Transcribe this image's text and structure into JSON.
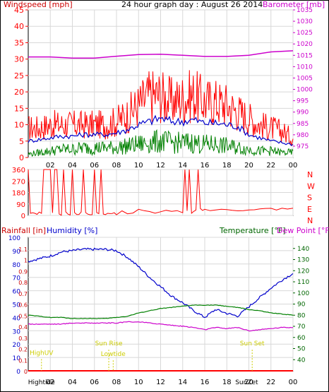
{
  "chart_data": [
    {
      "type": "line",
      "title": "24 hour graph day : August 26 2014",
      "left_axis_label": "Windspeed [mph]",
      "right_axis_label": "Barometer [mb]",
      "x_tick_labels": [
        "02",
        "04",
        "06",
        "08",
        "10",
        "12",
        "14",
        "16",
        "18",
        "20",
        "22",
        "00"
      ],
      "x_range_hours": [
        0,
        24
      ],
      "y_left": {
        "range": [
          0,
          45
        ],
        "ticks": [
          0,
          5,
          10,
          15,
          20,
          25,
          30,
          35,
          40,
          45
        ]
      },
      "y_right": {
        "range": [
          970,
          1035
        ],
        "ticks": [
          975,
          980,
          985,
          990,
          995,
          1000,
          1005,
          1010,
          1015,
          1020,
          1025,
          1030,
          1035
        ]
      },
      "grid": true,
      "colors": {
        "gust": "#ff0000",
        "average": "#0000cc",
        "speed": "#008000",
        "barometer": "#cc00cc",
        "axis_left": "#ff0000",
        "axis_right": "#cc00cc"
      },
      "series": [
        {
          "key": "gust",
          "x": [
            0,
            1,
            2,
            3,
            4,
            5,
            6,
            7,
            8,
            9,
            10,
            11,
            12,
            13,
            14,
            15,
            16,
            17,
            18,
            19,
            20,
            21,
            22,
            23,
            24
          ],
          "values": [
            9,
            9,
            10,
            10,
            10,
            10,
            10,
            10,
            11,
            13,
            16,
            19,
            19,
            17,
            18,
            19,
            17,
            17,
            16,
            14,
            12,
            10,
            9,
            8,
            6
          ]
        },
        {
          "key": "average",
          "x": [
            0,
            1,
            2,
            3,
            4,
            5,
            6,
            7,
            8,
            9,
            10,
            11,
            12,
            13,
            14,
            15,
            16,
            17,
            18,
            19,
            20,
            21,
            22,
            23,
            24
          ],
          "values": [
            5,
            5.5,
            6,
            6.5,
            6.5,
            7,
            7,
            7,
            7.5,
            8.5,
            10,
            11,
            12,
            11,
            11,
            11.5,
            10.5,
            10.5,
            10,
            9.5,
            7,
            6,
            5,
            4.5,
            4
          ]
        },
        {
          "key": "speed",
          "x": [
            0,
            1,
            2,
            3,
            4,
            5,
            6,
            7,
            8,
            9,
            10,
            11,
            12,
            13,
            14,
            15,
            16,
            17,
            18,
            19,
            20,
            21,
            22,
            23,
            24
          ],
          "values": [
            1,
            1.5,
            2,
            2.5,
            2.5,
            3,
            3,
            3,
            3,
            3.5,
            4,
            4.5,
            5,
            4.5,
            4.5,
            4.5,
            4,
            4,
            3.5,
            3,
            2.5,
            2,
            2,
            1.5,
            1.5
          ]
        },
        {
          "key": "barometer",
          "axis": "right",
          "x": [
            0,
            2,
            4,
            6,
            8,
            10,
            12,
            14,
            16,
            18,
            20,
            22,
            24
          ],
          "values": [
            1014.3,
            1014.3,
            1013.8,
            1013.8,
            1014.6,
            1015.3,
            1015.5,
            1015.0,
            1014.5,
            1014.5,
            1015.0,
            1016.5,
            1017.0
          ]
        }
      ]
    },
    {
      "type": "line",
      "title": "",
      "right_axis_labels": [
        "N",
        "W",
        "S",
        "E",
        "N"
      ],
      "x_range_hours": [
        0,
        24
      ],
      "y_left": {
        "range": [
          0,
          360
        ],
        "ticks": [
          0,
          90,
          180,
          270,
          360
        ]
      },
      "grid": true,
      "colors": {
        "direction": "#ff0000",
        "axis": "#ff0000"
      },
      "series": [
        {
          "key": "wind_direction",
          "x": [
            0,
            0.2,
            0.4,
            0.6,
            0.8,
            1.0,
            1.2,
            1.4,
            1.6,
            1.8,
            2.0,
            2.2,
            2.4,
            2.6,
            2.8,
            3.0,
            3.2,
            3.4,
            3.6,
            3.8,
            4.0,
            4.2,
            4.4,
            4.6,
            4.8,
            5.0,
            5.2,
            5.4,
            5.6,
            5.8,
            6.0,
            6.2,
            6.4,
            6.6,
            6.8,
            7.0,
            7.2,
            7.4,
            7.6,
            7.8,
            8.0,
            8.5,
            9,
            9.5,
            10,
            10.5,
            11,
            11.5,
            12,
            12.5,
            13,
            13.5,
            14,
            14.2,
            14.4,
            14.6,
            14.8,
            15.0,
            15.2,
            15.4,
            15.6,
            15.8,
            16,
            16.5,
            17,
            17.5,
            18,
            18.5,
            19,
            19.5,
            20,
            20.5,
            21,
            21.5,
            22,
            22.5,
            23,
            23.5,
            24
          ],
          "values": [
            360,
            10,
            15,
            8,
            12,
            18,
            10,
            360,
            360,
            360,
            360,
            20,
            360,
            360,
            15,
            10,
            360,
            20,
            14,
            12,
            360,
            15,
            10,
            12,
            20,
            360,
            14,
            18,
            12,
            10,
            360,
            14,
            16,
            360,
            20,
            12,
            10,
            15,
            18,
            12,
            14,
            30,
            20,
            25,
            40,
            30,
            35,
            25,
            30,
            35,
            25,
            40,
            30,
            360,
            35,
            360,
            25,
            30,
            40,
            360,
            45,
            35,
            50,
            40,
            35,
            50,
            40,
            38,
            45,
            35,
            50,
            40,
            55,
            45,
            50,
            48,
            55,
            45,
            50
          ]
        }
      ]
    },
    {
      "type": "line",
      "title": "",
      "left_axis_labels": [
        "Rainfall [in]",
        "Humidity [%]"
      ],
      "right_axis_labels": [
        "Temperature [°F]",
        "Dew Point [°F]"
      ],
      "x_tick_labels": [
        "02",
        "04",
        "06",
        "08",
        "10",
        "12",
        "14",
        "16",
        "18",
        "20",
        "22",
        "00"
      ],
      "x_range_hours": [
        0,
        24
      ],
      "y_humidity": {
        "range": [
          0,
          100
        ],
        "ticks": [
          0,
          10,
          20,
          30,
          40,
          50,
          60,
          70,
          80,
          90,
          100
        ]
      },
      "y_rainfall": {
        "range": [
          0,
          1.2
        ],
        "ticks": [
          "0",
          "0.1",
          "0.2",
          "0.3",
          "0.4",
          "0.5",
          "0.6",
          "0.7",
          "0.8",
          "0.9",
          "1",
          "1.1"
        ]
      },
      "y_temperature": {
        "range": [
          30,
          150
        ],
        "ticks": [
          40,
          50,
          60,
          70,
          80,
          90,
          100,
          110,
          120,
          130,
          140
        ]
      },
      "grid": true,
      "colors": {
        "humidity": "#0000cc",
        "temperature": "#008000",
        "dew_point": "#cc00cc",
        "rainfall": "#ff0000",
        "annotations": "#cccc00"
      },
      "annotations": [
        {
          "text": "HighUV",
          "x": 1.2,
          "y_frac": 0.88
        },
        {
          "text": "Sun Rise",
          "x": 7.3,
          "y_frac": 0.81
        },
        {
          "text": "Lowtide",
          "x": 7.7,
          "y_frac": 0.89
        },
        {
          "text": "Sun Set",
          "x": 20.3,
          "y_frac": 0.81
        }
      ],
      "bottom_labels": [
        {
          "text": "Hightide",
          "x": 1.2
        },
        {
          "text": "SunZet",
          "x": 19.8
        }
      ],
      "series": [
        {
          "key": "humidity",
          "axis": "humidity",
          "x": [
            0,
            1,
            2,
            3,
            4,
            5,
            6,
            7,
            8,
            9,
            10,
            11,
            12,
            13,
            14,
            15,
            16,
            17,
            18,
            19,
            20,
            21,
            22,
            23,
            24
          ],
          "values": [
            82,
            84,
            86,
            89,
            90,
            91,
            91,
            91,
            90,
            85,
            78,
            70,
            63,
            56,
            51,
            45,
            40,
            46,
            43,
            41,
            48,
            55,
            62,
            68,
            73
          ]
        },
        {
          "key": "temperature",
          "axis": "temperature",
          "x": [
            0,
            1,
            2,
            3,
            4,
            5,
            6,
            7,
            8,
            9,
            10,
            11,
            12,
            13,
            14,
            15,
            16,
            17,
            18,
            19,
            20,
            21,
            22,
            23,
            24
          ],
          "values": [
            80,
            79,
            78,
            78,
            77,
            77,
            77,
            77,
            78,
            79,
            82,
            84,
            86,
            87,
            88,
            89,
            89,
            89,
            88,
            87,
            85,
            84,
            82,
            81,
            80
          ]
        },
        {
          "key": "dew_point",
          "axis": "temperature",
          "x": [
            0,
            1,
            2,
            3,
            4,
            5,
            6,
            7,
            8,
            9,
            10,
            11,
            12,
            13,
            14,
            15,
            16,
            17,
            18,
            19,
            20,
            21,
            22,
            23,
            24
          ],
          "values": [
            72,
            72,
            72,
            72,
            73,
            73,
            73,
            73,
            73,
            74,
            74,
            73,
            72,
            71,
            70,
            69,
            67,
            69,
            68,
            69,
            66,
            67,
            68,
            69,
            69
          ]
        },
        {
          "key": "rainfall",
          "axis": "rainfall",
          "x": [
            0,
            24
          ],
          "values": [
            0,
            0
          ]
        }
      ]
    }
  ]
}
